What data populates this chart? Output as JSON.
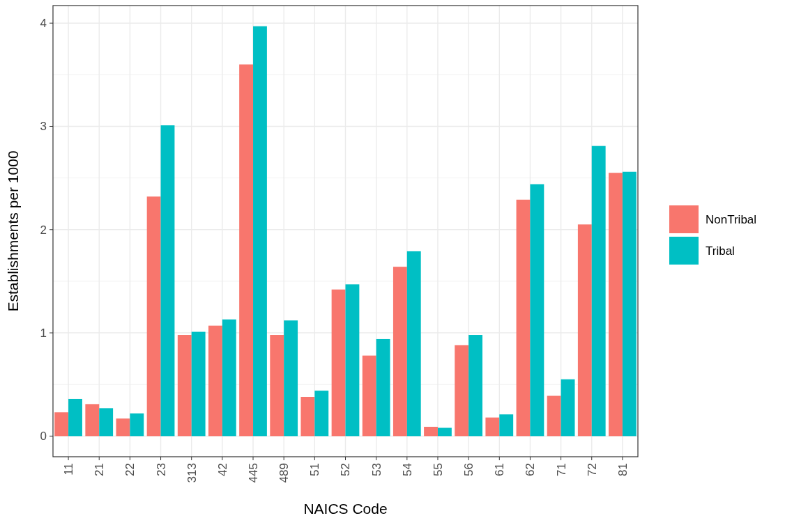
{
  "chart_data": {
    "type": "bar",
    "xlabel": "NAICS Code",
    "ylabel": "Establishments per 1000",
    "categories": [
      "11",
      "21",
      "22",
      "23",
      "313",
      "42",
      "445",
      "489",
      "51",
      "52",
      "53",
      "54",
      "55",
      "56",
      "61",
      "62",
      "71",
      "72",
      "81"
    ],
    "series": [
      {
        "name": "NonTribal",
        "color": "#f8766d",
        "values": [
          0.23,
          0.31,
          0.17,
          2.32,
          0.98,
          1.07,
          3.6,
          0.98,
          0.38,
          1.42,
          0.78,
          1.64,
          0.09,
          0.88,
          0.18,
          2.29,
          0.39,
          2.05,
          2.55
        ]
      },
      {
        "name": "Tribal",
        "color": "#00bfc4",
        "values": [
          0.36,
          0.27,
          0.22,
          3.01,
          1.01,
          1.13,
          3.97,
          1.12,
          0.44,
          1.47,
          0.94,
          1.79,
          0.08,
          0.98,
          0.21,
          2.44,
          0.55,
          2.81,
          2.56
        ]
      }
    ],
    "ylim": [
      -0.2,
      4.17
    ],
    "yticks": [
      0,
      1,
      2,
      3,
      4
    ],
    "grid": true,
    "legend": "right"
  }
}
